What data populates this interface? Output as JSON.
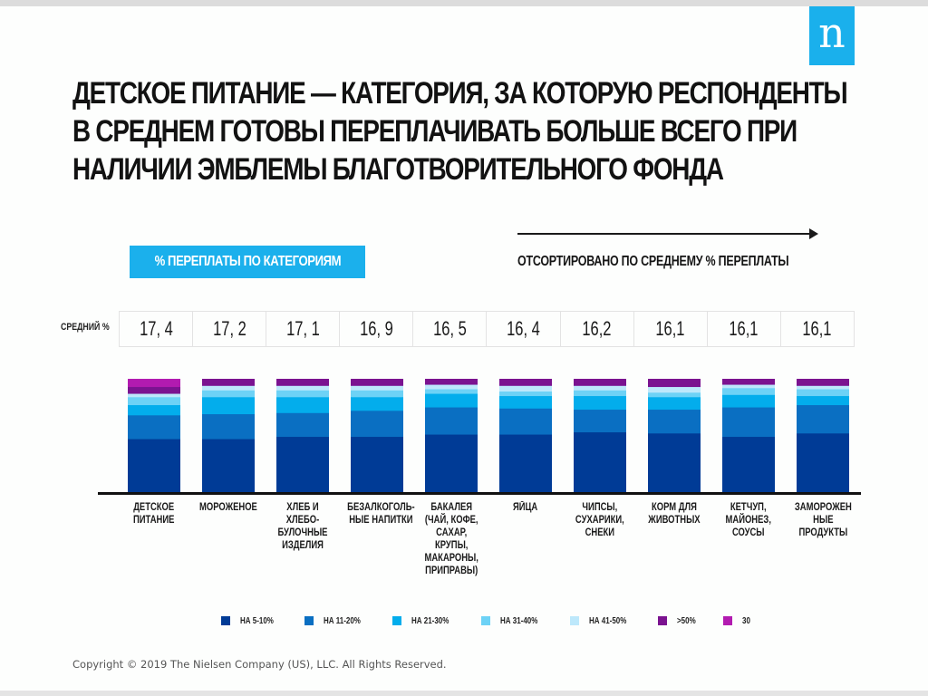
{
  "brand": {
    "logo_letter": "n",
    "logo_color": "#1ab0ec"
  },
  "title": {
    "lines": [
      "ДЕТСКОЕ ПИТАНИЕ — КАТЕГОРИЯ, ЗА КОТОРУЮ РЕСПОНДЕНТЫ",
      "В СРЕДНЕМ ГОТОВЫ ПЕРЕПЛАЧИВАТЬ БОЛЬШЕ ВСЕГО ПРИ",
      "НАЛИЧИИ ЭМБЛЕМЫ БЛАГОТВОРИТЕЛЬНОГО ФОНДА"
    ]
  },
  "badge": {
    "label": "% ПЕРЕПЛАТЫ ПО КАТЕГОРИЯМ"
  },
  "sorted_note": {
    "label": "ОТСОРТИРОВАНО ПО СРЕДНЕМУ % ПЕРЕПЛАТЫ"
  },
  "average": {
    "label": "СРЕДНИЙ %",
    "values": [
      "17, 4",
      "17, 2",
      "17, 1",
      "16, 9",
      "16, 5",
      "16, 4",
      "16,2",
      "16,1",
      "16,1",
      "16,1"
    ]
  },
  "chart_data": {
    "type": "bar",
    "stacked": true,
    "normalized_percent": true,
    "title": "% ПЕРЕПЛАТЫ ПО КАТЕГОРИЯМ",
    "xlabel": "",
    "ylabel": "",
    "ylim": [
      0,
      100
    ],
    "grid": false,
    "legend_position": "bottom",
    "categories": [
      "ДЕТСКОЕ\nПИТАНИЕ",
      "МОРОЖЕНОЕ",
      "ХЛЕБ И ХЛЕБО-\nБУЛОЧНЫЕ\nИЗДЕЛИЯ",
      "БЕЗАЛКОГОЛЬ-\nНЫЕ НАПИТКИ",
      "БАКАЛЕЯ\n(ЧАЙ, КОФЕ,\nСАХАР,\nКРУПЫ,\nМАКАРОНЫ,\nПРИПРАВЫ)",
      "ЯЙЦА",
      "ЧИПСЫ,\nСУХАРИКИ,\nСНЕКИ",
      "КОРМ ДЛЯ\nЖИВОТНЫХ",
      "КЕТЧУП,\nМАЙОНЕЗ,\nСОУСЫ",
      "ЗАМОРОЖЕН\nНЫЕ\nПРОДУКТЫ"
    ],
    "average_percent": [
      17.4,
      17.2,
      17.1,
      16.9,
      16.5,
      16.4,
      16.2,
      16.1,
      16.1,
      16.1
    ],
    "series": [
      {
        "name": "НА 5-10%",
        "color": "#003b96",
        "values": [
          47,
          47,
          49,
          49,
          51,
          51,
          53,
          52,
          49,
          52
        ]
      },
      {
        "name": "НА 11-20%",
        "color": "#0a6fc2",
        "values": [
          21,
          22,
          21,
          23,
          24,
          23,
          20,
          21,
          26,
          25
        ]
      },
      {
        "name": "НА 21-30%",
        "color": "#03adec",
        "values": [
          9,
          15,
          14,
          12,
          12,
          11,
          12,
          11,
          11,
          8
        ]
      },
      {
        "name": "НА 31-40%",
        "color": "#6dd2f6",
        "values": [
          7,
          6,
          6,
          6,
          4,
          4,
          5,
          4,
          6,
          6
        ]
      },
      {
        "name": "НА 41-50%",
        "color": "#bde8fb",
        "values": [
          3,
          4,
          4,
          4,
          4,
          5,
          4,
          5,
          3,
          3
        ]
      },
      {
        "name": ">50%",
        "color": "#7b1390",
        "values": [
          6,
          6,
          6,
          6,
          5,
          6,
          6,
          7,
          5,
          6
        ]
      },
      {
        "name": "30",
        "color": "#b21bb0",
        "values": [
          7,
          0,
          0,
          0,
          0,
          0,
          0,
          0,
          0,
          0
        ]
      }
    ]
  },
  "footer": {
    "copyright": "Copyright © 2019 The Nielsen Company (US), LLC. All Rights Reserved."
  }
}
